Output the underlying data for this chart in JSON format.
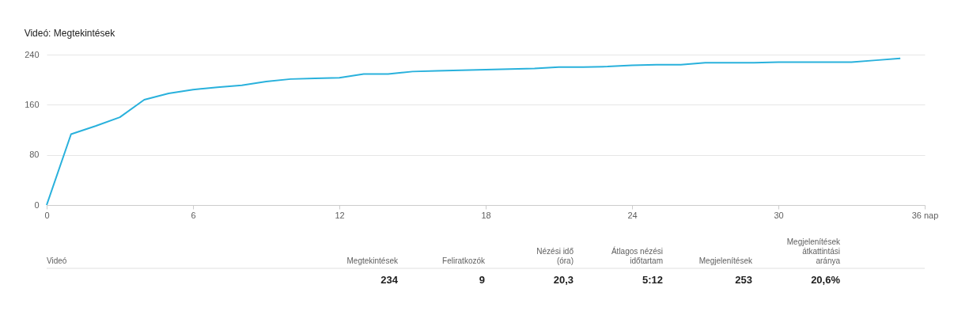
{
  "chart_data": {
    "type": "line",
    "title": "Videó: Megtekintések",
    "x": [
      0,
      1,
      2,
      3,
      4,
      5,
      6,
      7,
      8,
      9,
      10,
      11,
      12,
      13,
      14,
      15,
      16,
      17,
      18,
      19,
      20,
      21,
      22,
      23,
      24,
      25,
      26,
      27,
      28,
      29,
      30,
      31,
      32,
      33,
      34,
      35
    ],
    "series": [
      {
        "color": "#29b1dc",
        "values": [
          0,
          113,
          126,
          140,
          168,
          178,
          184,
          188,
          191,
          197,
          201,
          202,
          203,
          209,
          209,
          213,
          214,
          215,
          216,
          217,
          218,
          220,
          220,
          221,
          223,
          224,
          224,
          227,
          227,
          227,
          228,
          228,
          228,
          228,
          231,
          234
        ]
      }
    ],
    "xlim": [
      0,
      36
    ],
    "xticks": [
      0,
      6,
      12,
      18,
      24,
      30,
      {
        "value": 36,
        "label": "36 nap"
      }
    ],
    "ylim": [
      0,
      240
    ],
    "yticks": [
      0,
      80,
      160,
      240
    ],
    "grid": "y",
    "legend": false,
    "marker": "none",
    "line_style": "solid",
    "annotations": [
      "Videó",
      "Megtekintések",
      "Feliratkozók",
      "Nézési idő\n(óra)",
      "Átlagos nézési\nidőtartam",
      "Megjelenítések",
      "Megjelenítések\nátkattintási\naránya",
      "234",
      "9",
      "20,3",
      "5:12",
      "253",
      "20,6%"
    ]
  }
}
